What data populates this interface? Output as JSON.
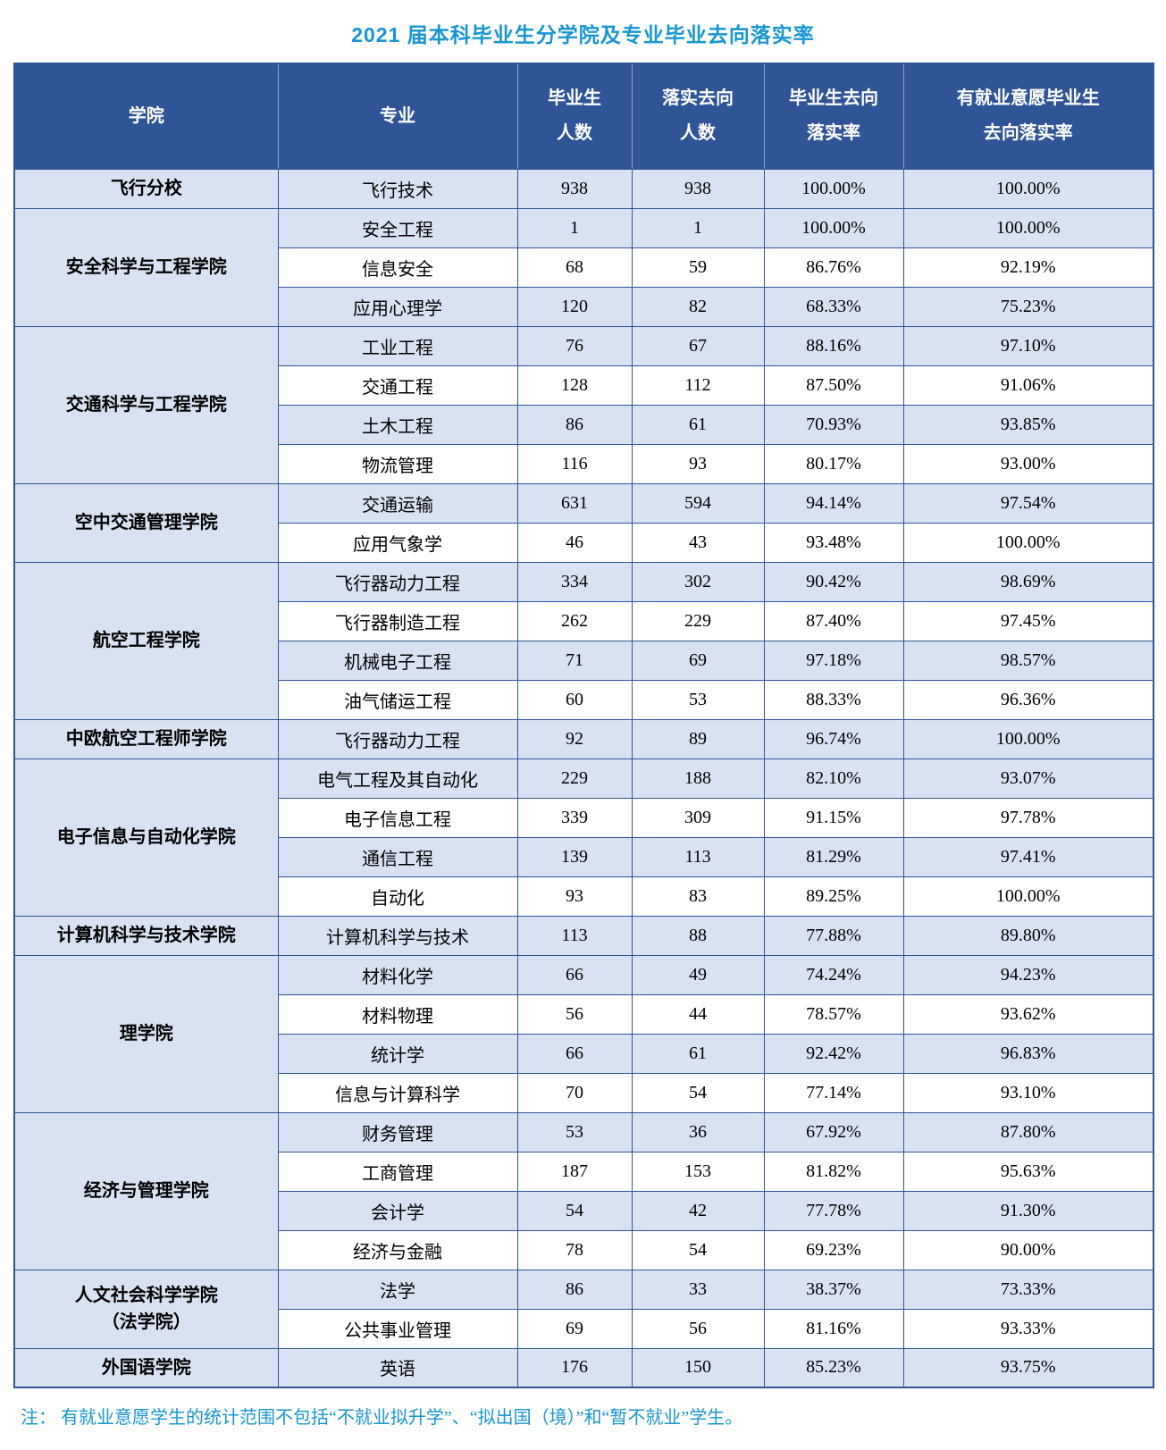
{
  "page": {
    "title": "2021 届本科毕业生分学院及专业毕业去向落实率",
    "note": "注： 有就业意愿学生的统计范围不包括“不就业拟升学”、“拟出国（境）”和“暂不就业”学生。"
  },
  "colors": {
    "header_bg": "#2F5597",
    "band_bg": "#D9E2F3",
    "border_color": "#2F5597",
    "title_color": "#1796D2"
  },
  "table": {
    "headers": [
      "学院",
      "专业",
      "毕业生\n人数",
      "落实去向\n人数",
      "毕业生去向\n落实率",
      "有就业意愿毕业生\n去向落实率"
    ],
    "groups": [
      {
        "college": "飞行分校",
        "rows": [
          [
            "飞行技术",
            "938",
            "938",
            "100.00%",
            "100.00%"
          ]
        ]
      },
      {
        "college": "安全科学与工程学院",
        "rows": [
          [
            "安全工程",
            "1",
            "1",
            "100.00%",
            "100.00%"
          ],
          [
            "信息安全",
            "68",
            "59",
            "86.76%",
            "92.19%"
          ],
          [
            "应用心理学",
            "120",
            "82",
            "68.33%",
            "75.23%"
          ]
        ]
      },
      {
        "college": "交通科学与工程学院",
        "rows": [
          [
            "工业工程",
            "76",
            "67",
            "88.16%",
            "97.10%"
          ],
          [
            "交通工程",
            "128",
            "112",
            "87.50%",
            "91.06%"
          ],
          [
            "土木工程",
            "86",
            "61",
            "70.93%",
            "93.85%"
          ],
          [
            "物流管理",
            "116",
            "93",
            "80.17%",
            "93.00%"
          ]
        ]
      },
      {
        "college": "空中交通管理学院",
        "rows": [
          [
            "交通运输",
            "631",
            "594",
            "94.14%",
            "97.54%"
          ],
          [
            "应用气象学",
            "46",
            "43",
            "93.48%",
            "100.00%"
          ]
        ]
      },
      {
        "college": "航空工程学院",
        "rows": [
          [
            "飞行器动力工程",
            "334",
            "302",
            "90.42%",
            "98.69%"
          ],
          [
            "飞行器制造工程",
            "262",
            "229",
            "87.40%",
            "97.45%"
          ],
          [
            "机械电子工程",
            "71",
            "69",
            "97.18%",
            "98.57%"
          ],
          [
            "油气储运工程",
            "60",
            "53",
            "88.33%",
            "96.36%"
          ]
        ]
      },
      {
        "college": "中欧航空工程师学院",
        "rows": [
          [
            "飞行器动力工程",
            "92",
            "89",
            "96.74%",
            "100.00%"
          ]
        ]
      },
      {
        "college": "电子信息与自动化学院",
        "rows": [
          [
            "电气工程及其自动化",
            "229",
            "188",
            "82.10%",
            "93.07%"
          ],
          [
            "电子信息工程",
            "339",
            "309",
            "91.15%",
            "97.78%"
          ],
          [
            "通信工程",
            "139",
            "113",
            "81.29%",
            "97.41%"
          ],
          [
            "自动化",
            "93",
            "83",
            "89.25%",
            "100.00%"
          ]
        ]
      },
      {
        "college": "计算机科学与技术学院",
        "rows": [
          [
            "计算机科学与技术",
            "113",
            "88",
            "77.88%",
            "89.80%"
          ]
        ]
      },
      {
        "college": "理学院",
        "rows": [
          [
            "材料化学",
            "66",
            "49",
            "74.24%",
            "94.23%"
          ],
          [
            "材料物理",
            "56",
            "44",
            "78.57%",
            "93.62%"
          ],
          [
            "统计学",
            "66",
            "61",
            "92.42%",
            "96.83%"
          ],
          [
            "信息与计算科学",
            "70",
            "54",
            "77.14%",
            "93.10%"
          ]
        ]
      },
      {
        "college": "经济与管理学院",
        "rows": [
          [
            "财务管理",
            "53",
            "36",
            "67.92%",
            "87.80%"
          ],
          [
            "工商管理",
            "187",
            "153",
            "81.82%",
            "95.63%"
          ],
          [
            "会计学",
            "54",
            "42",
            "77.78%",
            "91.30%"
          ],
          [
            "经济与金融",
            "78",
            "54",
            "69.23%",
            "90.00%"
          ]
        ]
      },
      {
        "college": "人文社会科学学院\n（法学院）",
        "rows": [
          [
            "法学",
            "86",
            "33",
            "38.37%",
            "73.33%"
          ],
          [
            "公共事业管理",
            "69",
            "56",
            "81.16%",
            "93.33%"
          ]
        ]
      },
      {
        "college": "外国语学院",
        "rows": [
          [
            "英语",
            "176",
            "150",
            "85.23%",
            "93.75%"
          ]
        ]
      }
    ]
  }
}
